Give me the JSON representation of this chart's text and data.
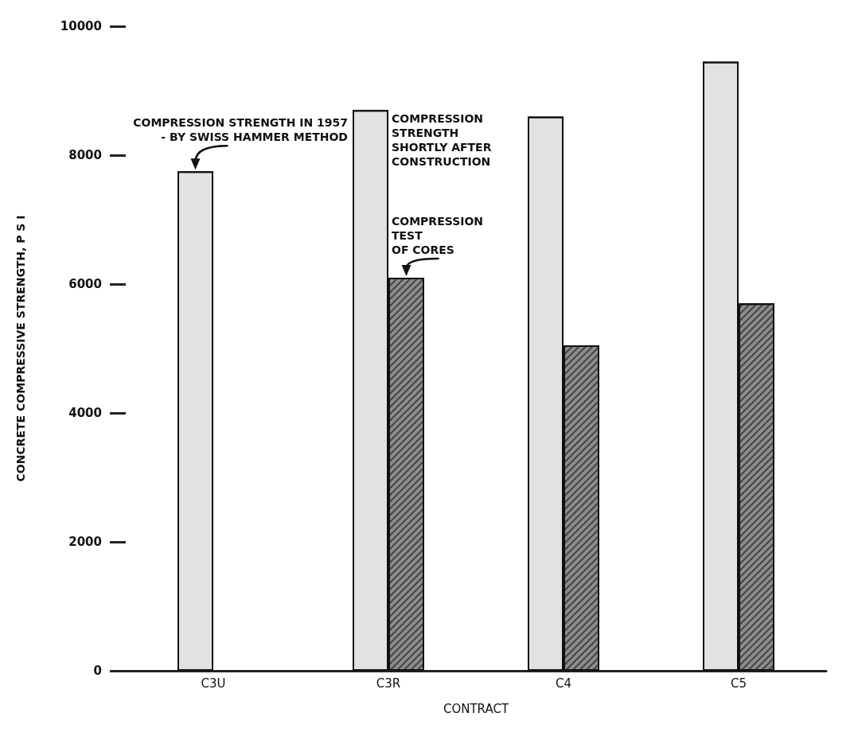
{
  "chart_data": {
    "type": "bar",
    "xlabel": "CONTRACT",
    "ylabel": "CONCRETE COMPRESSIVE STRENGTH, P S I",
    "categories": [
      "C3U",
      "C3R",
      "C4",
      "C5"
    ],
    "series": [
      {
        "color": "#e2e2e2",
        "values": [
          7750,
          8700,
          8600,
          9450
        ]
      },
      {
        "color": "#8c8c8c",
        "values": [
          null,
          6100,
          5050,
          5700
        ]
      }
    ],
    "ylim": [
      0,
      10000
    ],
    "yticks": [
      0,
      2000,
      4000,
      6000,
      8000,
      10000
    ],
    "grid": false,
    "annotations": [
      {
        "text": "COMPRESSION STRENGTH IN 1957\n- BY SWISS HAMMER METHOD",
        "x": "C3U",
        "y": 7750
      },
      {
        "text": "COMPRESSION\nSTRENGTH\nSHORTLY AFTER\nCONSTRUCTION",
        "x": "C3R",
        "y": 8700
      },
      {
        "text": "COMPRESSION\nTEST\nOF CORES",
        "x": "C3R",
        "y": 6100
      }
    ]
  }
}
